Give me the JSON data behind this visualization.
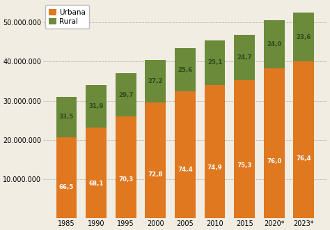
{
  "years": [
    "1985",
    "1990",
    "1995",
    "2000",
    "2005",
    "2010",
    "2015",
    "2020*",
    "2023*"
  ],
  "urban_pct": [
    66.5,
    68.1,
    70.3,
    72.8,
    74.4,
    74.9,
    75.3,
    76.0,
    76.4
  ],
  "rural_pct": [
    33.5,
    31.9,
    29.7,
    27.2,
    25.6,
    25.1,
    24.7,
    24.0,
    23.6
  ],
  "urban_vals": [
    20650000,
    23180000,
    26010000,
    29480000,
    32360000,
    34060000,
    35260000,
    38380000,
    40100000
  ],
  "rural_vals": [
    10400000,
    10820000,
    10990000,
    11020000,
    11140000,
    11440000,
    11540000,
    12120000,
    12400000
  ],
  "urban_color": "#E07820",
  "rural_color": "#6B8B3A",
  "background_color": "#F2EDE3",
  "ylim": [
    0,
    55000000
  ],
  "yticks": [
    10000000,
    20000000,
    30000000,
    40000000,
    50000000
  ],
  "grid_color": "#AAAAAA",
  "legend_labels": [
    "Urbana",
    "Rural"
  ],
  "bar_width": 0.7,
  "urban_label_color": "white",
  "rural_label_color": "#2D4A1E",
  "label_fontsize": 6.2,
  "tick_fontsize": 7.0
}
